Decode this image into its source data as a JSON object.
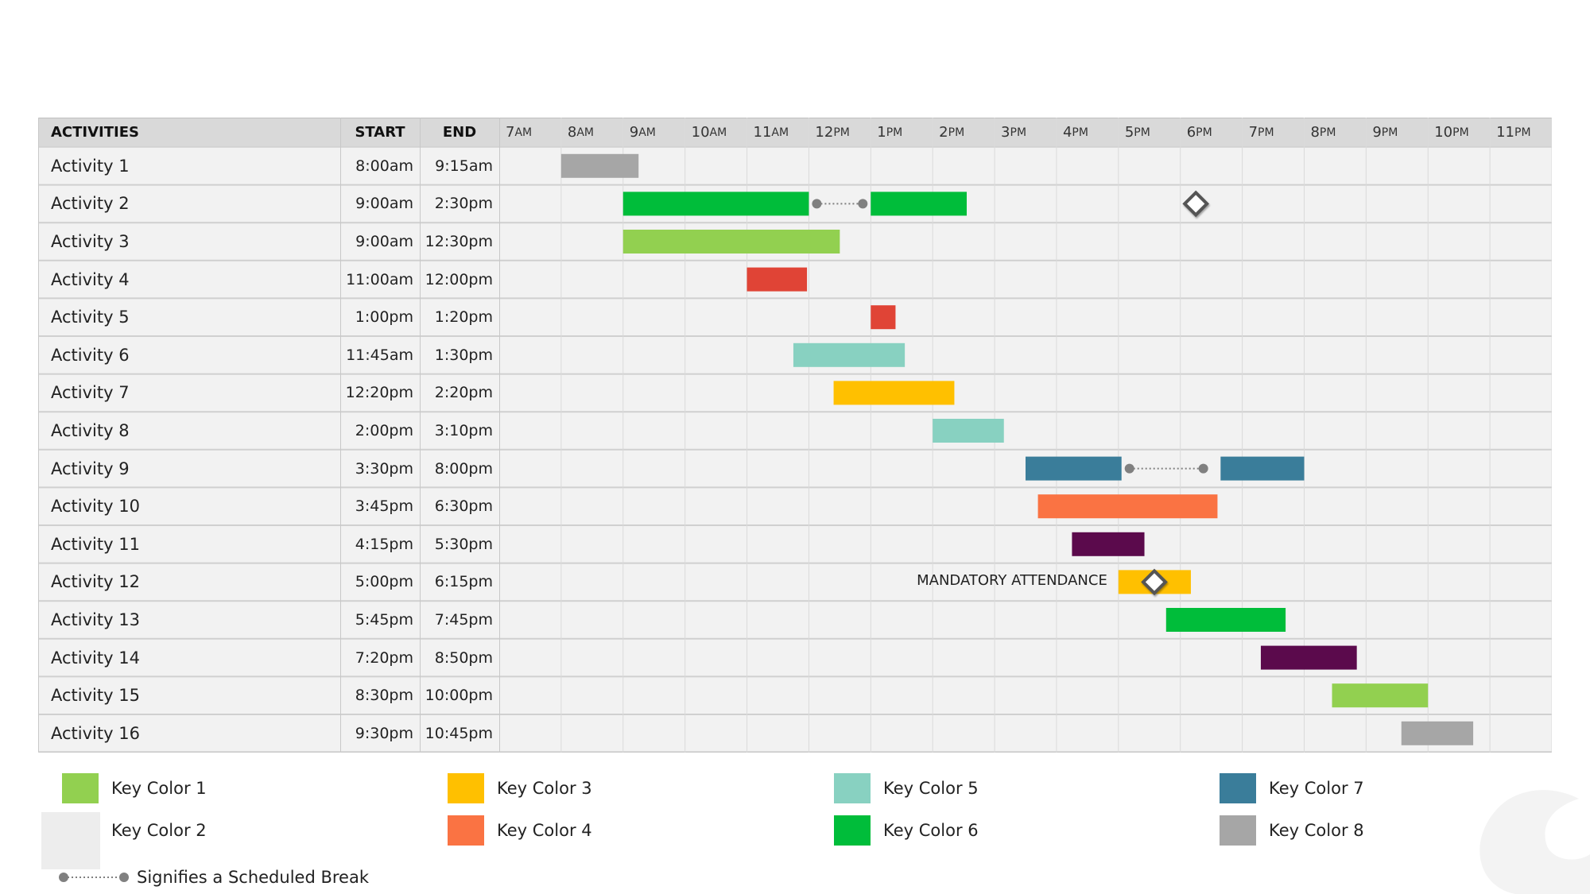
{
  "table": {
    "headers": {
      "activities": "ACTIVITIES",
      "start": "START",
      "end": "END"
    },
    "hours": [
      {
        "num": "7",
        "ap": "AM"
      },
      {
        "num": "8",
        "ap": "AM"
      },
      {
        "num": "9",
        "ap": "AM"
      },
      {
        "num": "10",
        "ap": "AM"
      },
      {
        "num": "11",
        "ap": "AM"
      },
      {
        "num": "12",
        "ap": "PM"
      },
      {
        "num": "1",
        "ap": "PM"
      },
      {
        "num": "2",
        "ap": "PM"
      },
      {
        "num": "3",
        "ap": "PM"
      },
      {
        "num": "4",
        "ap": "PM"
      },
      {
        "num": "5",
        "ap": "PM"
      },
      {
        "num": "6",
        "ap": "PM"
      },
      {
        "num": "7",
        "ap": "PM"
      },
      {
        "num": "8",
        "ap": "PM"
      },
      {
        "num": "9",
        "ap": "PM"
      },
      {
        "num": "10",
        "ap": "PM"
      },
      {
        "num": "11",
        "ap": "PM"
      }
    ]
  },
  "colors": {
    "header_bg": "#d9d9d9",
    "row_bg": "#f2f2f2",
    "grid_line": "#d0d0d0",
    "key1": "#92d050",
    "key2": "#e04436",
    "key3": "#ffc000",
    "key4": "#fa7343",
    "key5": "#88d1c1",
    "key6": "#00bd3a",
    "key7": "#3a7d9a",
    "key8": "#a6a6a6",
    "purple": "#5b0a4c",
    "connector": "#808080"
  },
  "chart_data": {
    "type": "gantt",
    "x_axis": {
      "start_hour": 7,
      "end_hour": 24,
      "tick_labels": [
        "7AM",
        "8AM",
        "9AM",
        "10AM",
        "11AM",
        "12PM",
        "1PM",
        "2PM",
        "3PM",
        "4PM",
        "5PM",
        "6PM",
        "7PM",
        "8PM",
        "9PM",
        "10PM",
        "11PM"
      ]
    },
    "activities": [
      {
        "name": "Activity 1",
        "start": "8:00am",
        "end": "9:15am",
        "segments": [
          {
            "from": 8.0,
            "to": 9.25,
            "color": "#a6a6a6"
          }
        ]
      },
      {
        "name": "Activity 2",
        "start": "9:00am",
        "end": "2:30pm",
        "segments": [
          {
            "from": 9.0,
            "to": 12.0,
            "color": "#00bd3a"
          },
          {
            "from": 13.0,
            "to": 14.55,
            "color": "#00bd3a"
          }
        ],
        "break": {
          "from": 12.0,
          "to": 13.0
        },
        "milestone": 18.25
      },
      {
        "name": "Activity 3",
        "start": "9:00am",
        "end": "12:30pm",
        "segments": [
          {
            "from": 9.0,
            "to": 12.5,
            "color": "#92d050"
          }
        ]
      },
      {
        "name": "Activity 4",
        "start": "11:00am",
        "end": "12:00pm",
        "segments": [
          {
            "from": 11.0,
            "to": 11.97,
            "color": "#e04436"
          }
        ]
      },
      {
        "name": "Activity 5",
        "start": "1:00pm",
        "end": "1:20pm",
        "segments": [
          {
            "from": 13.0,
            "to": 13.4,
            "color": "#e04436"
          }
        ]
      },
      {
        "name": "Activity 6",
        "start": "11:45am",
        "end": "1:30pm",
        "segments": [
          {
            "from": 11.75,
            "to": 13.55,
            "color": "#88d1c1"
          }
        ]
      },
      {
        "name": "Activity 7",
        "start": "12:20pm",
        "end": "2:20pm",
        "segments": [
          {
            "from": 12.4,
            "to": 14.35,
            "color": "#ffc000"
          }
        ]
      },
      {
        "name": "Activity 8",
        "start": "2:00pm",
        "end": "3:10pm",
        "segments": [
          {
            "from": 14.0,
            "to": 15.15,
            "color": "#88d1c1"
          }
        ]
      },
      {
        "name": "Activity 9",
        "start": "3:30pm",
        "end": "8:00pm",
        "segments": [
          {
            "from": 15.5,
            "to": 17.05,
            "color": "#3a7d9a"
          },
          {
            "from": 18.65,
            "to": 20.0,
            "color": "#3a7d9a"
          }
        ],
        "break": {
          "from": 17.05,
          "to": 18.5
        }
      },
      {
        "name": "Activity 10",
        "start": "3:45pm",
        "end": "6:30pm",
        "segments": [
          {
            "from": 15.7,
            "to": 18.6,
            "color": "#fa7343"
          }
        ]
      },
      {
        "name": "Activity 11",
        "start": "4:15pm",
        "end": "5:30pm",
        "segments": [
          {
            "from": 16.25,
            "to": 17.42,
            "color": "#5b0a4c"
          }
        ]
      },
      {
        "name": "Activity 12",
        "start": "5:00pm",
        "end": "6:15pm",
        "segments": [
          {
            "from": 17.0,
            "to": 18.17,
            "color": "#ffc000"
          }
        ],
        "milestone": 17.58,
        "note": "MANDATORY ATTENDANCE"
      },
      {
        "name": "Activity 13",
        "start": "5:45pm",
        "end": "7:45pm",
        "segments": [
          {
            "from": 17.77,
            "to": 19.7,
            "color": "#00bd3a"
          }
        ]
      },
      {
        "name": "Activity 14",
        "start": "7:20pm",
        "end": "8:50pm",
        "segments": [
          {
            "from": 19.3,
            "to": 20.85,
            "color": "#5b0a4c"
          }
        ]
      },
      {
        "name": "Activity 15",
        "start": "8:30pm",
        "end": "10:00pm",
        "segments": [
          {
            "from": 20.45,
            "to": 22.0,
            "color": "#92d050"
          }
        ]
      },
      {
        "name": "Activity 16",
        "start": "9:30pm",
        "end": "10:45pm",
        "segments": [
          {
            "from": 21.57,
            "to": 22.73,
            "color": "#a6a6a6"
          }
        ]
      }
    ]
  },
  "legend": {
    "items": [
      {
        "label": "Key Color 1",
        "color": "#92d050"
      },
      {
        "label": "Key Color 2",
        "color": "#e04436"
      },
      {
        "label": "Key Color 3",
        "color": "#ffc000"
      },
      {
        "label": "Key Color 4",
        "color": "#fa7343"
      },
      {
        "label": "Key Color 5",
        "color": "#88d1c1"
      },
      {
        "label": "Key Color 6",
        "color": "#00bd3a"
      },
      {
        "label": "Key Color 7",
        "color": "#3a7d9a"
      },
      {
        "label": "Key Color 8",
        "color": "#a6a6a6"
      }
    ],
    "break_label": "Signifies a Scheduled Break"
  }
}
